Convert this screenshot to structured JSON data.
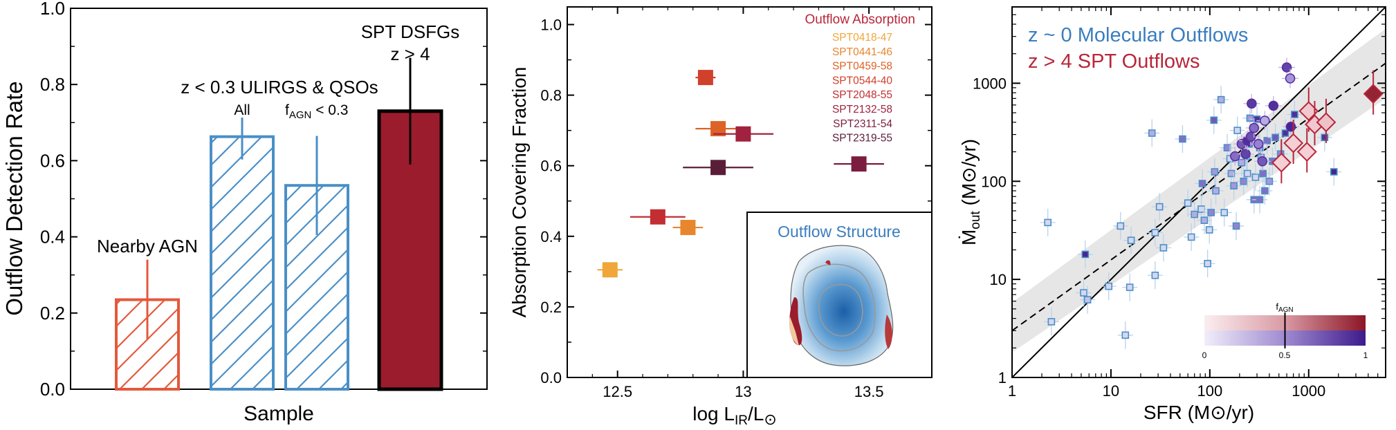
{
  "chart_data": [
    {
      "type": "bar",
      "xlabel": "Sample",
      "ylabel": "Outflow Detection Rate",
      "ylim": [
        0,
        1.0
      ],
      "yticks": [
        "0.0",
        "0.2",
        "0.4",
        "0.6",
        "0.8",
        "1.0"
      ],
      "bars": [
        {
          "label": "Nearby AGN",
          "value": 0.235,
          "err_lo": 0.105,
          "err_hi": 0.105,
          "color": "#e5583b",
          "hatch": true
        },
        {
          "label": "All",
          "value": 0.663,
          "err_lo": 0.06,
          "err_hi": 0.05,
          "color": "#4a8fc7",
          "hatch": true
        },
        {
          "label": "f_AGN < 0.3",
          "value": 0.535,
          "err_lo": 0.13,
          "err_hi": 0.13,
          "color": "#4a8fc7",
          "hatch": true
        },
        {
          "label": "SPT DSFGs z > 4",
          "value": 0.73,
          "err_lo": 0.14,
          "err_hi": 0.14,
          "color": "#9b1c2c",
          "hatch": false
        }
      ],
      "annotations": {
        "nearby": "Nearby AGN",
        "ulirgs": "z < 0.3 ULIRGS & QSOs",
        "all": "All",
        "fagn_main": "f",
        "fagn_sub": "AGN",
        "fagn_rest": " < 0.3",
        "spt_line1": "SPT DSFGs",
        "spt_line2": "z > 4"
      }
    },
    {
      "type": "scatter",
      "xlabel_main": "log L",
      "xlabel_sub": "IR",
      "xlabel_rest": "/L",
      "xlabel_sym": "⊙",
      "ylabel": "Absorption Covering Fraction",
      "xlim": [
        12.3,
        13.75
      ],
      "ylim": [
        0.0,
        1.05
      ],
      "xticks": [
        "12.5",
        "13",
        "13.5"
      ],
      "yticks": [
        "0.0",
        "0.2",
        "0.4",
        "0.6",
        "0.8",
        "1.0"
      ],
      "legend_title": "Outflow Absorption",
      "legend_title_color": "#b8263a",
      "series": [
        {
          "name": "SPT0418-47",
          "x": 12.47,
          "y": 0.305,
          "xerr": 0.05,
          "color": "#f0a63b"
        },
        {
          "name": "SPT0441-46",
          "x": 12.78,
          "y": 0.425,
          "xerr": 0.06,
          "color": "#e8862e"
        },
        {
          "name": "SPT0459-58",
          "x": 12.9,
          "y": 0.705,
          "xerr": 0.09,
          "color": "#dd6226"
        },
        {
          "name": "SPT0544-40",
          "x": 12.85,
          "y": 0.85,
          "xerr": 0.04,
          "color": "#d0402a"
        },
        {
          "name": "SPT2048-55",
          "x": 12.66,
          "y": 0.455,
          "xerr": 0.11,
          "color": "#c22e32"
        },
        {
          "name": "SPT2132-58",
          "x": 13.0,
          "y": 0.69,
          "xerr": 0.12,
          "color": "#a1223e"
        },
        {
          "name": "SPT2311-54",
          "x": 13.46,
          "y": 0.605,
          "xerr": 0.1,
          "color": "#7b1d3f"
        },
        {
          "name": "SPT2319-55",
          "x": 12.9,
          "y": 0.595,
          "xerr": 0.14,
          "color": "#5a1d38"
        }
      ],
      "inset_title": "Outflow Structure"
    },
    {
      "type": "scatter",
      "xscale": "log",
      "yscale": "log",
      "xlabel": "SFR (M⊙/yr)",
      "ylabel_main": "Ṁ",
      "ylabel_sub": "out",
      "ylabel_rest": " (M⊙/yr)",
      "xlim": [
        1,
        6000
      ],
      "ylim": [
        1,
        6000
      ],
      "xticks": [
        "1",
        "10",
        "100",
        "1000"
      ],
      "yticks": [
        "1",
        "10",
        "100",
        "1000"
      ],
      "legend": [
        {
          "text": "z ~ 0 Molecular Outflows",
          "color": "#3a7dbf"
        },
        {
          "text": "z > 4 SPT Outflows",
          "color": "#b8263a"
        }
      ],
      "lines": [
        {
          "name": "one-to-one",
          "style": "solid",
          "points": [
            [
              1,
              1
            ],
            [
              6000,
              6000
            ]
          ]
        },
        {
          "name": "fit",
          "style": "dashed",
          "points": [
            [
              1,
              3.0
            ],
            [
              6000,
              1600
            ]
          ]
        }
      ],
      "band_lo": [
        [
          1,
          1.8
        ],
        [
          6000,
          700
        ]
      ],
      "band_hi": [
        [
          1,
          5.8
        ],
        [
          6000,
          3600
        ]
      ],
      "colorbar": {
        "label_main": "f",
        "label_sub": "AGN",
        "ticks": [
          "0",
          "0.5",
          "1"
        ],
        "marker": 0.5
      },
      "low_z_squares": [
        {
          "x": 2.3,
          "y": 38,
          "f": 0.1
        },
        {
          "x": 2.5,
          "y": 3.7,
          "f": 0.1
        },
        {
          "x": 5.3,
          "y": 7.3,
          "f": 0.1
        },
        {
          "x": 5.5,
          "y": 18,
          "f": 0.95
        },
        {
          "x": 5.8,
          "y": 6.2,
          "f": 0.2
        },
        {
          "x": 9.5,
          "y": 8.5,
          "f": 0.1
        },
        {
          "x": 12.5,
          "y": 35,
          "f": 0.1
        },
        {
          "x": 14,
          "y": 2.7,
          "f": 0.1
        },
        {
          "x": 15.5,
          "y": 8.3,
          "f": 0.1
        },
        {
          "x": 16,
          "y": 25,
          "f": 0.1
        },
        {
          "x": 26,
          "y": 310,
          "f": 0.3
        },
        {
          "x": 28,
          "y": 30,
          "f": 0.1
        },
        {
          "x": 28,
          "y": 11,
          "f": 0.1
        },
        {
          "x": 31,
          "y": 55,
          "f": 0.1
        },
        {
          "x": 34,
          "y": 21,
          "f": 0.1
        },
        {
          "x": 53,
          "y": 270,
          "f": 0.6
        },
        {
          "x": 60,
          "y": 60,
          "f": 0.1
        },
        {
          "x": 65,
          "y": 27,
          "f": 0.1
        },
        {
          "x": 70,
          "y": 46,
          "f": 0.3
        },
        {
          "x": 82,
          "y": 52,
          "f": 0.1
        },
        {
          "x": 84,
          "y": 95,
          "f": 0.6
        },
        {
          "x": 88,
          "y": 40,
          "f": 0.3
        },
        {
          "x": 95,
          "y": 14.5,
          "f": 0.1
        },
        {
          "x": 99,
          "y": 32,
          "f": 0.1
        },
        {
          "x": 103,
          "y": 48,
          "f": 0.5
        },
        {
          "x": 110,
          "y": 420,
          "f": 0.7
        },
        {
          "x": 112,
          "y": 125,
          "f": 0.4
        },
        {
          "x": 115,
          "y": 80,
          "f": 0.3
        },
        {
          "x": 130,
          "y": 680,
          "f": 0.3
        },
        {
          "x": 140,
          "y": 48,
          "f": 0.1
        },
        {
          "x": 150,
          "y": 220,
          "f": 0.5
        },
        {
          "x": 160,
          "y": 170,
          "f": 0.1
        },
        {
          "x": 165,
          "y": 120,
          "f": 0.3
        },
        {
          "x": 175,
          "y": 90,
          "f": 0.4
        },
        {
          "x": 185,
          "y": 35,
          "f": 0.5
        },
        {
          "x": 190,
          "y": 330,
          "f": 0.1
        },
        {
          "x": 210,
          "y": 155,
          "f": 0.3
        },
        {
          "x": 220,
          "y": 100,
          "f": 0.5
        },
        {
          "x": 235,
          "y": 180,
          "f": 0.1
        },
        {
          "x": 240,
          "y": 120,
          "f": 0.1
        },
        {
          "x": 250,
          "y": 240,
          "f": 0.9
        },
        {
          "x": 255,
          "y": 440,
          "f": 0.4
        },
        {
          "x": 280,
          "y": 65,
          "f": 0.6
        },
        {
          "x": 290,
          "y": 110,
          "f": 0.1
        },
        {
          "x": 300,
          "y": 430,
          "f": 0.9
        },
        {
          "x": 320,
          "y": 220,
          "f": 0.5
        },
        {
          "x": 330,
          "y": 175,
          "f": 0.3
        },
        {
          "x": 345,
          "y": 120,
          "f": 0.6
        },
        {
          "x": 360,
          "y": 80,
          "f": 0.6
        },
        {
          "x": 380,
          "y": 260,
          "f": 0.6
        },
        {
          "x": 400,
          "y": 100,
          "f": 0.4
        },
        {
          "x": 430,
          "y": 160,
          "f": 0.6
        },
        {
          "x": 460,
          "y": 280,
          "f": 0.7
        },
        {
          "x": 520,
          "y": 190,
          "f": 0.5
        },
        {
          "x": 580,
          "y": 310,
          "f": 0.9
        },
        {
          "x": 720,
          "y": 480,
          "f": 0.9
        },
        {
          "x": 1450,
          "y": 280,
          "f": 0.9
        },
        {
          "x": 1800,
          "y": 125,
          "f": 0.95
        },
        {
          "x": 320,
          "y": 65,
          "f": 0.6
        }
      ],
      "low_z_circles": [
        {
          "x": 180,
          "y": 180,
          "f": 0.6
        },
        {
          "x": 210,
          "y": 240,
          "f": 0.7
        },
        {
          "x": 230,
          "y": 190,
          "f": 0.8
        },
        {
          "x": 240,
          "y": 260,
          "f": 0.9
        },
        {
          "x": 260,
          "y": 285,
          "f": 0.75
        },
        {
          "x": 265,
          "y": 620,
          "f": 0.85
        },
        {
          "x": 280,
          "y": 350,
          "f": 0.6
        },
        {
          "x": 310,
          "y": 240,
          "f": 0.5
        },
        {
          "x": 340,
          "y": 160,
          "f": 0.7
        },
        {
          "x": 360,
          "y": 415,
          "f": 0.3
        },
        {
          "x": 440,
          "y": 590,
          "f": 0.9
        },
        {
          "x": 600,
          "y": 1450,
          "f": 0.8
        },
        {
          "x": 650,
          "y": 1120,
          "f": 0.4
        },
        {
          "x": 660,
          "y": 360,
          "f": 0.95
        }
      ],
      "spt_diamonds": [
        {
          "x": 530,
          "y": 155,
          "f": 0.1
        },
        {
          "x": 700,
          "y": 245,
          "f": 0.1
        },
        {
          "x": 960,
          "y": 200,
          "f": 0.1
        },
        {
          "x": 1000,
          "y": 520,
          "f": 0.15
        },
        {
          "x": 1150,
          "y": 380,
          "f": 0.15
        },
        {
          "x": 1500,
          "y": 400,
          "f": 0.2
        },
        {
          "x": 4500,
          "y": 780,
          "f": 0.95
        }
      ]
    }
  ]
}
